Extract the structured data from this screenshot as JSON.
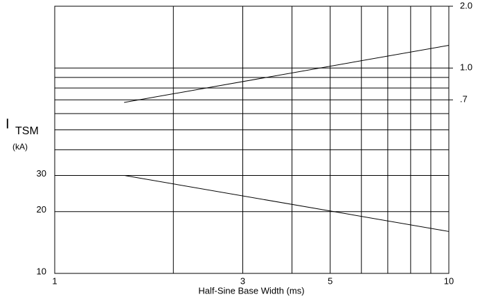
{
  "chart_data": {
    "type": "line",
    "ylabel": "I",
    "ylabel_sub": "TSM",
    "yunit": "(kA)",
    "xlabel": "Half-Sine Base Width (ms)",
    "x": [
      1.5,
      10
    ],
    "series": [
      {
        "values": [
          30,
          16
        ],
        "color": "#000000"
      },
      {
        "values": [
          0.68,
          1.29
        ],
        "color": "#000000",
        "axis": "y2"
      }
    ],
    "xlog": true,
    "ylog": true,
    "xlim": [
      1,
      10
    ],
    "xticks": [
      1,
      3,
      5,
      10
    ],
    "xminor": [
      2,
      4,
      6,
      7,
      8,
      9
    ],
    "ylim": [
      10,
      200
    ],
    "yticks": [
      10,
      20,
      30
    ],
    "yminor": [
      40,
      50,
      60,
      70,
      80,
      90,
      100
    ],
    "y2lim": [
      0.1,
      2.0
    ],
    "y2ticks": [
      {
        "value": 0.7,
        "label": ".7"
      },
      {
        "value": 1.0,
        "label": "1.0"
      },
      {
        "value": 2.0,
        "label": "2.0"
      }
    ],
    "grid": true
  }
}
